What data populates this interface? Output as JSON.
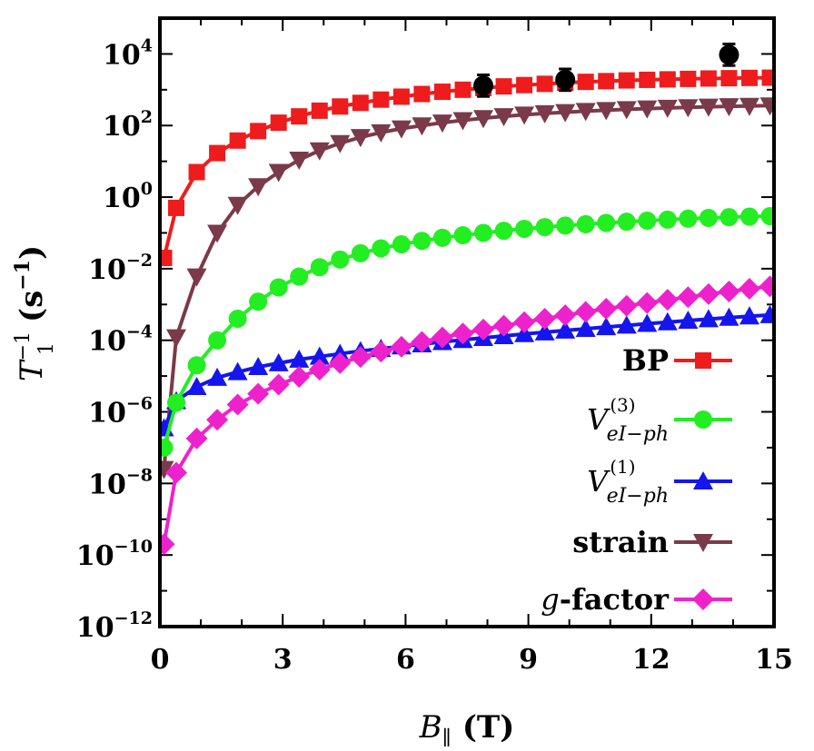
{
  "chart_data": {
    "type": "line",
    "xlabel": "B∥ (T)",
    "xlabel_parts": {
      "symbol": "B",
      "sub": "∥",
      "unit": "(T)"
    },
    "ylabel": "T1−1 (s−1)",
    "ylabel_parts": {
      "symbol": "T",
      "sub": "1",
      "sup": "−1",
      "unit_open": "(s",
      "unit_sup": "−1",
      "unit_close": ")"
    },
    "xlim": [
      0,
      15
    ],
    "ylim": [
      1e-12,
      100000.0
    ],
    "yscale": "log",
    "xticks": [
      0,
      3,
      6,
      9,
      12,
      15
    ],
    "xtick_labels": [
      "0",
      "3",
      "6",
      "9",
      "12",
      "15"
    ],
    "yticks": [
      {
        "value": 10000.0,
        "base": "10",
        "exp": "4"
      },
      {
        "value": 100.0,
        "base": "10",
        "exp": "2"
      },
      {
        "value": 1.0,
        "base": "10",
        "exp": "0"
      },
      {
        "value": 0.01,
        "base": "10",
        "exp": "−2"
      },
      {
        "value": 0.0001,
        "base": "10",
        "exp": "−4"
      },
      {
        "value": 1e-06,
        "base": "10",
        "exp": "−6"
      },
      {
        "value": 1e-08,
        "base": "10",
        "exp": "−8"
      },
      {
        "value": 1e-10,
        "base": "10",
        "exp": "−10"
      },
      {
        "value": 1e-12,
        "base": "10",
        "exp": "−12"
      }
    ],
    "grid": false,
    "legend_position": "bottom-right",
    "x": [
      0.1,
      0.4,
      0.9,
      1.4,
      1.9,
      2.4,
      2.9,
      3.4,
      3.9,
      4.4,
      4.9,
      5.4,
      5.9,
      6.4,
      6.9,
      7.4,
      7.9,
      8.4,
      8.9,
      9.4,
      9.9,
      10.4,
      10.9,
      11.4,
      11.9,
      12.4,
      12.9,
      13.4,
      13.9,
      14.4,
      14.9
    ],
    "series": [
      {
        "name": "BP",
        "color": "#ee1c1c",
        "marker": "square",
        "values": [
          0.02,
          0.5,
          5,
          17,
          38,
          70,
          120,
          180,
          260,
          340,
          430,
          530,
          640,
          760,
          880,
          1000,
          1120,
          1240,
          1350,
          1460,
          1560,
          1660,
          1740,
          1820,
          1890,
          1950,
          2010,
          2060,
          2100,
          2140,
          2170
        ]
      },
      {
        "name": "V(3) eI−ph",
        "label_parts": {
          "base": "V",
          "sup": "(3)",
          "sub": "eI−ph"
        },
        "color": "#22ee22",
        "marker": "circle",
        "values": [
          1e-07,
          1.8e-06,
          2e-05,
          0.0001,
          0.0004,
          0.0012,
          0.003,
          0.006,
          0.011,
          0.018,
          0.027,
          0.037,
          0.048,
          0.06,
          0.073,
          0.086,
          0.1,
          0.115,
          0.13,
          0.145,
          0.16,
          0.175,
          0.19,
          0.205,
          0.22,
          0.235,
          0.25,
          0.262,
          0.275,
          0.285,
          0.295
        ]
      },
      {
        "name": "V(1) eI−ph",
        "label_parts": {
          "base": "V",
          "sup": "(1)",
          "sub": "eI−ph"
        },
        "color": "#1515ee",
        "marker": "triangle-up",
        "values": [
          3.5e-07,
          2e-06,
          5e-06,
          9e-06,
          1.3e-05,
          1.8e-05,
          2.3e-05,
          2.9e-05,
          3.5e-05,
          4.2e-05,
          5e-05,
          5.8e-05,
          6.8e-05,
          7.8e-05,
          9e-05,
          0.000103,
          0.000117,
          0.000132,
          0.00015,
          0.000168,
          0.000188,
          0.00021,
          0.000235,
          0.00026,
          0.00029,
          0.00032,
          0.000355,
          0.00039,
          0.00043,
          0.00047,
          0.00051
        ]
      },
      {
        "name": "strain",
        "color": "#7a3a4a",
        "marker": "triangle-down",
        "values": [
          2.5e-08,
          0.00012,
          0.006,
          0.1,
          0.6,
          2,
          5,
          11,
          20,
          32,
          47,
          64,
          82,
          100,
          120,
          140,
          160,
          180,
          200,
          218,
          235,
          252,
          268,
          283,
          297,
          310,
          322,
          333,
          343,
          352,
          360
        ]
      },
      {
        "name": "g-factor",
        "label_parts": {
          "italic": "g",
          "rest": "-factor"
        },
        "color": "#ee22cc",
        "marker": "diamond",
        "values": [
          2e-10,
          2e-08,
          1.8e-07,
          6e-07,
          1.6e-06,
          3.2e-06,
          5.8e-06,
          9.5e-06,
          1.5e-05,
          2.3e-05,
          3.4e-05,
          4.8e-05,
          6.6e-05,
          9e-05,
          0.00012,
          0.000155,
          0.0002,
          0.000255,
          0.00032,
          0.0004,
          0.0005,
          0.00062,
          0.00076,
          0.00092,
          0.0011,
          0.00135,
          0.0016,
          0.00195,
          0.0023,
          0.00275,
          0.0032
        ]
      }
    ],
    "experimental_points": {
      "color": "#000000",
      "marker": "circle-with-errorbar",
      "points": [
        {
          "x": 7.9,
          "y": 1300,
          "err_low": 650,
          "err_high": 1300
        },
        {
          "x": 9.9,
          "y": 1900,
          "err_low": 950,
          "err_high": 1900
        },
        {
          "x": 13.9,
          "y": 9500,
          "err_low": 4750,
          "err_high": 9500
        }
      ]
    }
  }
}
